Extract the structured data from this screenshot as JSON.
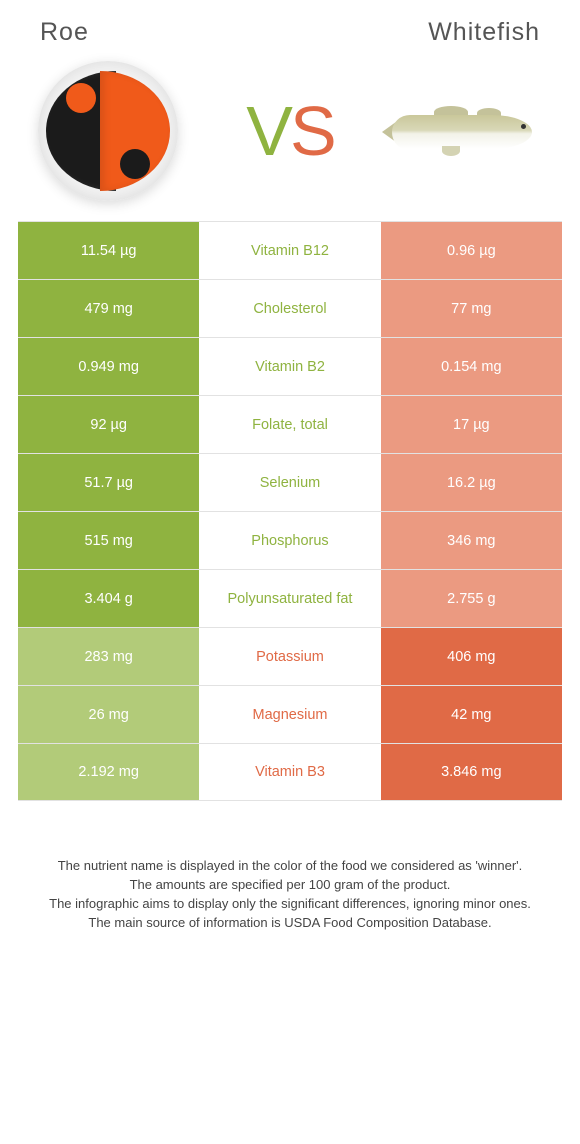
{
  "titles": {
    "left": "Roe",
    "right": "Whitefish"
  },
  "vs": {
    "v": "V",
    "s": "S"
  },
  "colors": {
    "left_winner": "#8fb340",
    "left_loser": "#b2cb79",
    "right_winner": "#e06a46",
    "right_loser": "#eb9a81",
    "border": "#e2e2e2",
    "text": "#555555"
  },
  "rows": [
    {
      "left": "11.54 µg",
      "label": "Vitamin B12",
      "right": "0.96 µg",
      "winner": "left"
    },
    {
      "left": "479 mg",
      "label": "Cholesterol",
      "right": "77 mg",
      "winner": "left"
    },
    {
      "left": "0.949 mg",
      "label": "Vitamin B2",
      "right": "0.154 mg",
      "winner": "left"
    },
    {
      "left": "92 µg",
      "label": "Folate, total",
      "right": "17 µg",
      "winner": "left"
    },
    {
      "left": "51.7 µg",
      "label": "Selenium",
      "right": "16.2 µg",
      "winner": "left"
    },
    {
      "left": "515 mg",
      "label": "Phosphorus",
      "right": "346 mg",
      "winner": "left"
    },
    {
      "left": "3.404 g",
      "label": "Polyunsaturated fat",
      "right": "2.755 g",
      "winner": "left"
    },
    {
      "left": "283 mg",
      "label": "Potassium",
      "right": "406 mg",
      "winner": "right"
    },
    {
      "left": "26 mg",
      "label": "Magnesium",
      "right": "42 mg",
      "winner": "right"
    },
    {
      "left": "2.192 mg",
      "label": "Vitamin B3",
      "right": "3.846 mg",
      "winner": "right"
    }
  ],
  "footnotes": [
    "The nutrient name is displayed in the color of the food we considered as 'winner'.",
    "The amounts are specified per 100 gram of the product.",
    "The infographic aims to display only the significant differences, ignoring minor ones.",
    "The main source of information is USDA Food Composition Database."
  ]
}
